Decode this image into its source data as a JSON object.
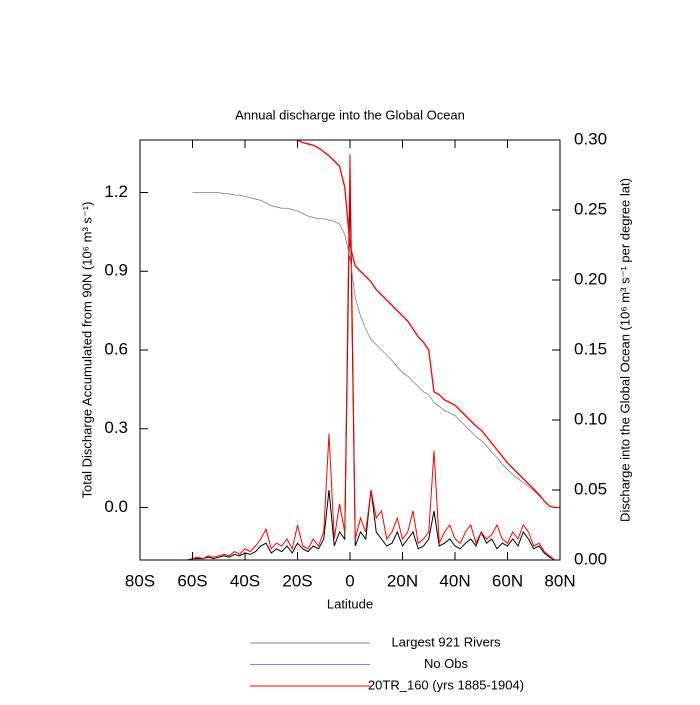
{
  "chart_data": {
    "type": "line",
    "title": "Annual discharge into the Global Ocean",
    "x_label": "Latitude",
    "y_label": "Total Discharge Accumulated from 90N (10⁶ m³ s⁻¹)",
    "y2_label": "Discharge into the Global Ocean (10⁶ m³ s⁻¹ per degree lat)",
    "x": [
      -80,
      -78,
      -76,
      -74,
      -72,
      -70,
      -68,
      -66,
      -64,
      -62,
      -60,
      -58,
      -56,
      -54,
      -52,
      -50,
      -48,
      -46,
      -44,
      -42,
      -40,
      -38,
      -36,
      -34,
      -32,
      -30,
      -28,
      -26,
      -24,
      -22,
      -20,
      -18,
      -16,
      -14,
      -12,
      -10,
      -8,
      -6,
      -4,
      -2,
      0,
      2,
      4,
      6,
      8,
      10,
      12,
      14,
      16,
      18,
      20,
      22,
      24,
      26,
      28,
      30,
      32,
      34,
      36,
      38,
      40,
      42,
      44,
      46,
      48,
      50,
      52,
      54,
      56,
      58,
      60,
      62,
      64,
      66,
      68,
      70,
      72,
      74,
      76,
      78,
      80
    ],
    "xlim": [
      -80,
      80
    ],
    "xticks": [
      {
        "value": -80,
        "label": "80S"
      },
      {
        "value": -60,
        "label": "60S"
      },
      {
        "value": -40,
        "label": "40S"
      },
      {
        "value": -20,
        "label": "20S"
      },
      0,
      {
        "value": 20,
        "label": "20N"
      },
      {
        "value": 40,
        "label": "40N"
      },
      {
        "value": 60,
        "label": "60N"
      },
      {
        "value": 80,
        "label": "80N"
      }
    ],
    "ylim": [
      -0.2,
      1.4
    ],
    "yticks": [
      {
        "value": 0,
        "label": "0.0"
      },
      0.3,
      0.6,
      0.9,
      1.2
    ],
    "y2lim": [
      0,
      0.3
    ],
    "y2ticks": [
      {
        "value": 0,
        "label": "0.00"
      },
      0.05,
      {
        "value": 0.1,
        "label": "0.10"
      },
      0.15,
      {
        "value": 0.2,
        "label": "0.20"
      },
      0.25,
      {
        "value": 0.3,
        "label": "0.30"
      }
    ],
    "series": [
      {
        "name": "Largest 921 Rivers",
        "color": "#808080",
        "values": [
          null,
          null,
          null,
          null,
          null,
          null,
          null,
          null,
          null,
          null,
          1.2,
          1.2,
          1.2,
          1.2,
          1.2,
          1.2,
          1.195,
          1.195,
          1.19,
          1.19,
          1.185,
          1.18,
          1.175,
          1.17,
          1.16,
          1.15,
          1.145,
          1.14,
          1.14,
          1.135,
          1.13,
          1.12,
          1.11,
          1.105,
          1.1,
          1.1,
          1.095,
          1.09,
          1.08,
          1.04,
          0.95,
          0.8,
          0.73,
          0.68,
          0.64,
          0.62,
          0.6,
          0.58,
          0.56,
          0.535,
          0.515,
          0.5,
          0.48,
          0.46,
          0.44,
          0.43,
          0.4,
          0.385,
          0.37,
          0.36,
          0.35,
          0.33,
          0.31,
          0.29,
          0.27,
          0.255,
          0.235,
          0.21,
          0.19,
          0.165,
          0.145,
          0.125,
          0.11,
          0.095,
          0.08,
          0.065,
          0.045,
          0.025,
          0.005,
          0,
          0
        ]
      },
      {
        "name": "No Obs",
        "color": "#8080ff",
        "values": [
          null,
          null,
          null,
          null,
          null,
          null,
          null,
          null,
          null,
          null,
          null,
          null,
          null,
          null,
          null,
          null,
          null,
          null,
          null,
          null,
          null,
          null,
          null,
          null,
          null,
          null,
          null,
          null,
          null,
          null,
          null,
          null,
          null,
          null,
          null,
          null,
          null,
          null,
          null,
          null,
          null,
          null,
          null,
          null,
          null,
          null,
          null,
          null,
          null,
          null,
          null,
          null,
          null,
          null,
          null,
          null,
          null,
          null,
          null,
          null,
          null,
          null,
          null,
          null,
          null,
          null,
          null,
          null,
          null,
          null,
          null,
          null,
          null,
          null,
          null,
          null,
          null,
          null,
          null,
          null,
          null
        ]
      },
      {
        "name": "20TR_160 (yrs 1885-1904)",
        "color": "#ff0000",
        "values": [
          null,
          null,
          null,
          null,
          null,
          null,
          null,
          null,
          null,
          null,
          null,
          null,
          null,
          null,
          null,
          null,
          null,
          null,
          null,
          null,
          null,
          null,
          null,
          null,
          null,
          null,
          null,
          null,
          1.43,
          1.41,
          1.4,
          1.39,
          1.385,
          1.38,
          1.37,
          1.355,
          1.34,
          1.32,
          1.3,
          1.22,
          1.0,
          0.92,
          0.9,
          0.88,
          0.86,
          0.83,
          0.81,
          0.79,
          0.77,
          0.75,
          0.73,
          0.71,
          0.68,
          0.65,
          0.63,
          0.6,
          0.44,
          0.43,
          0.41,
          0.4,
          0.39,
          0.37,
          0.35,
          0.33,
          0.31,
          0.295,
          0.27,
          0.245,
          0.22,
          0.195,
          0.17,
          0.15,
          0.13,
          0.11,
          0.09,
          0.07,
          0.05,
          0.025,
          0.005,
          0,
          0
        ]
      }
    ],
    "discharge_series": [
      {
        "axis": "y2",
        "color": "#000000",
        "values": [
          0,
          0,
          0,
          0,
          0,
          0,
          0,
          0,
          0,
          0,
          0.001,
          0.001,
          0.001,
          0.002,
          0.001,
          0.002,
          0.003,
          0.002,
          0.004,
          0.003,
          0.005,
          0.004,
          0.006,
          0.01,
          0.012,
          0.005,
          0.008,
          0.006,
          0.01,
          0.005,
          0.012,
          0.008,
          0.006,
          0.01,
          0.008,
          0.015,
          0.05,
          0.01,
          0.02,
          0.015,
          0.27,
          0.01,
          0.02,
          0.015,
          0.05,
          0.02,
          0.015,
          0.01,
          0.012,
          0.02,
          0.01,
          0.015,
          0.02,
          0.008,
          0.01,
          0.015,
          0.035,
          0.01,
          0.012,
          0.015,
          0.01,
          0.008,
          0.012,
          0.015,
          0.01,
          0.02,
          0.012,
          0.015,
          0.008,
          0.012,
          0.01,
          0.015,
          0.01,
          0.02,
          0.015,
          0.008,
          0.01,
          0.005,
          0.002,
          0,
          0
        ]
      },
      {
        "axis": "y2",
        "color": "#ff0000",
        "values": [
          0,
          0,
          0,
          0,
          0,
          0,
          0,
          0,
          0,
          0,
          0.001,
          0.002,
          0.001,
          0.003,
          0.002,
          0.003,
          0.004,
          0.003,
          0.006,
          0.004,
          0.008,
          0.006,
          0.01,
          0.015,
          0.022,
          0.008,
          0.012,
          0.01,
          0.015,
          0.008,
          0.025,
          0.01,
          0.008,
          0.015,
          0.01,
          0.02,
          0.09,
          0.015,
          0.04,
          0.02,
          0.29,
          0.015,
          0.03,
          0.02,
          0.05,
          0.03,
          0.035,
          0.015,
          0.02,
          0.03,
          0.015,
          0.02,
          0.035,
          0.012,
          0.015,
          0.02,
          0.078,
          0.012,
          0.02,
          0.025,
          0.015,
          0.012,
          0.02,
          0.025,
          0.012,
          0.02,
          0.015,
          0.018,
          0.025,
          0.015,
          0.012,
          0.02,
          0.015,
          0.025,
          0.02,
          0.01,
          0.012,
          0.006,
          0.003,
          0,
          0
        ]
      }
    ]
  }
}
